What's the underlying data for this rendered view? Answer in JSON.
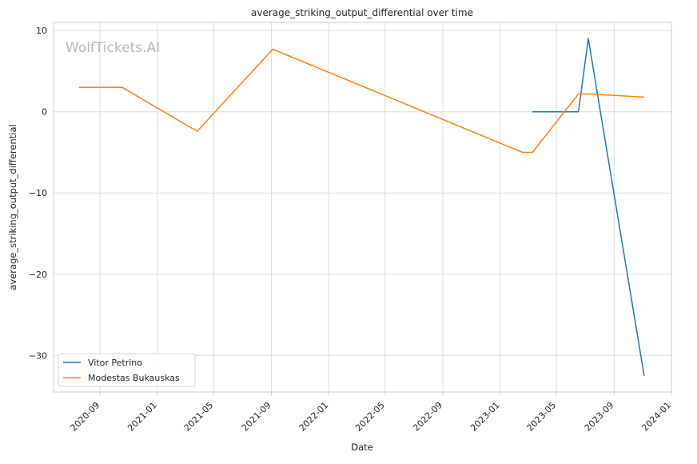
{
  "watermark": "WolfTickets.AI",
  "chart_data": {
    "type": "line",
    "title": "average_striking_output_differential over time",
    "xlabel": "Date",
    "ylabel": "average_striking_output_differential",
    "x_type": "date",
    "xlim": [
      "2020-05-25",
      "2024-01-01"
    ],
    "ylim": [
      -34.5,
      11
    ],
    "x_ticks": [
      "2020-09",
      "2021-01",
      "2021-05",
      "2021-09",
      "2022-01",
      "2022-05",
      "2022-09",
      "2023-01",
      "2023-05",
      "2023-09",
      "2024-01"
    ],
    "y_ticks": [
      10,
      0,
      -10,
      -20,
      -30
    ],
    "y_tick_labels": [
      "10",
      "0",
      "−10",
      "−20",
      "−30"
    ],
    "grid": true,
    "legend_position": "lower-left",
    "colors": {
      "Vitor Petrino": "#1f77b4",
      "Modestas Bukauskas": "#ff7f0e"
    },
    "series": [
      {
        "name": "Vitor Petrino",
        "color": "#1f77b4",
        "points": [
          {
            "x": "2023-03-11",
            "y": 0
          },
          {
            "x": "2023-06-17",
            "y": 0
          },
          {
            "x": "2023-07-08",
            "y": 9
          },
          {
            "x": "2023-11-04",
            "y": -32.5
          }
        ]
      },
      {
        "name": "Modestas Bukauskas",
        "color": "#ff7f0e",
        "points": [
          {
            "x": "2020-07-18",
            "y": 3
          },
          {
            "x": "2020-10-04",
            "y": 3
          },
          {
            "x": "2020-10-18",
            "y": 3
          },
          {
            "x": "2021-03-27",
            "y": -2.4
          },
          {
            "x": "2021-09-04",
            "y": 7.7
          },
          {
            "x": "2023-02-18",
            "y": -5
          },
          {
            "x": "2023-03-11",
            "y": -5
          },
          {
            "x": "2023-06-17",
            "y": 2.2
          },
          {
            "x": "2023-07-08",
            "y": 2.2
          },
          {
            "x": "2023-11-04",
            "y": 1.8
          }
        ]
      }
    ]
  }
}
